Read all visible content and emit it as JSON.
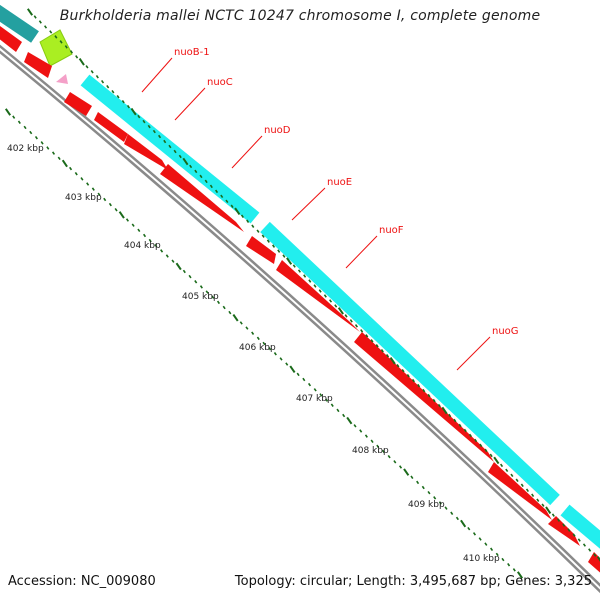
{
  "title": "Burkholderia mallei NCTC 10247 chromosome I, complete genome",
  "footer": {
    "accession": "Accession: NC_009080",
    "summary": "Topology: circular; Length: 3,495,687 bp; Genes: 3,325"
  },
  "kbp_labels": [
    "402 kbp",
    "403 kbp",
    "404 kbp",
    "405 kbp",
    "406 kbp",
    "407 kbp",
    "408 kbp",
    "409 kbp",
    "410 kbp"
  ],
  "gene_labels": [
    "nuoB-1",
    "nuoC",
    "nuoD",
    "nuoE",
    "nuoF",
    "nuoG"
  ],
  "colors": {
    "cds_forward": "#22eeee",
    "cds_reverse": "#ee1111",
    "green_feature": "#aaee22",
    "pink_feature": "#f4a0c8",
    "backbone": "#888888",
    "tick": "#1a6a1a",
    "label_line": "#ee1111"
  }
}
